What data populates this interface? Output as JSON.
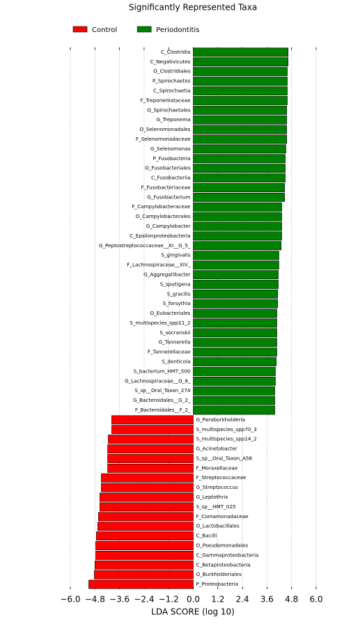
{
  "chart_data": {
    "type": "hbar",
    "title": "Significantly Represented Taxa",
    "x_label": "LDA SCORE (log 10)",
    "xlim": [
      -6,
      6
    ],
    "xticks": [
      {
        "value": -6,
        "label": "−6.0"
      },
      {
        "value": -4.8,
        "label": "−4.8"
      },
      {
        "value": -3.6,
        "label": "−3.6"
      },
      {
        "value": -2.4,
        "label": "−2.4"
      },
      {
        "value": -1.2,
        "label": "−1.2"
      },
      {
        "value": 0,
        "label": "0.0"
      },
      1.2,
      2.4,
      3.6,
      4.8,
      {
        "value": 6,
        "label": "6.0"
      }
    ],
    "grid": true,
    "series": [
      {
        "name": "Control",
        "color": "#ff0000",
        "categories": [
          "G_Paraburkholderia",
          "S_multispecies_spp70_3",
          "S_multispecies_spp14_2",
          "G_Acinetobacter",
          "S_sp__Oral_Taxon_A58",
          "F_Moraxellaceae",
          "F_Streptococcaceae",
          "G_Streptococcus",
          "G_Leptothrix",
          "S_sp__HMT_025",
          "F_Comamonadaceae",
          "O_Lactobacillales",
          "C_Bacilli",
          "O_Pseudomonadales",
          "C_Gammaproteobacteria",
          "C_Betaproteobacteria",
          "O_Burkholderiales",
          "P_Proteobacteria"
        ],
        "values": [
          -3.98,
          -3.98,
          -4.15,
          -4.18,
          -4.18,
          -4.18,
          -4.49,
          -4.49,
          -4.56,
          -4.56,
          -4.63,
          -4.66,
          -4.73,
          -4.76,
          -4.76,
          -4.8,
          -4.83,
          -5.1
        ]
      },
      {
        "name": "Periodontitis",
        "color": "#008000",
        "categories": [
          "C_Clostridia",
          "C_Negativicutes",
          "O_Clostridiales",
          "P_Spirochaetes",
          "C_Spirochaetia",
          "F_Treponemataceae",
          "O_Spirochaetales",
          "G_Treponema",
          "O_Selenomonadales",
          "F_Selenomonadaceae",
          "G_Selenomonas",
          "P_Fusobacteria",
          "O_Fusobacteriales",
          "C_Fusobacteriia",
          "F_Fusobacteriaceae",
          "G_Fusobacterium",
          "F_Campylobacteraceae",
          "O_Campylobacterales",
          "G_Campylobacter",
          "C_Epsilonproteobacteria",
          "G_Peptostreptococcaceae__XI__G_5_",
          "S_gingivalis",
          "F_Lachnospiraceae__XIV_",
          "G_Aggregatibacter",
          "S_sputigena",
          "S_gracilis",
          "S_forsythia",
          "O_Eubacteriales",
          "S_multispecies_spp11_2",
          "S_socranskii",
          "G_Tannerella",
          "F_Tannerellaceae",
          "S_denticola",
          "S_bacterium_HMT_500",
          "G_Lachnospiraceae__G_8_",
          "S_sp__Oral_Taxon_274",
          "G_Bacteroidales__G_2_",
          "F_Bacteroidales__F_2_"
        ],
        "values": [
          4.63,
          4.63,
          4.59,
          4.59,
          4.59,
          4.59,
          4.56,
          4.56,
          4.56,
          4.56,
          4.52,
          4.49,
          4.49,
          4.49,
          4.46,
          4.46,
          4.32,
          4.32,
          4.32,
          4.32,
          4.29,
          4.18,
          4.18,
          4.15,
          4.15,
          4.12,
          4.12,
          4.08,
          4.08,
          4.08,
          4.08,
          4.08,
          4.05,
          4.01,
          4.01,
          3.98,
          3.98,
          3.98
        ]
      }
    ]
  }
}
